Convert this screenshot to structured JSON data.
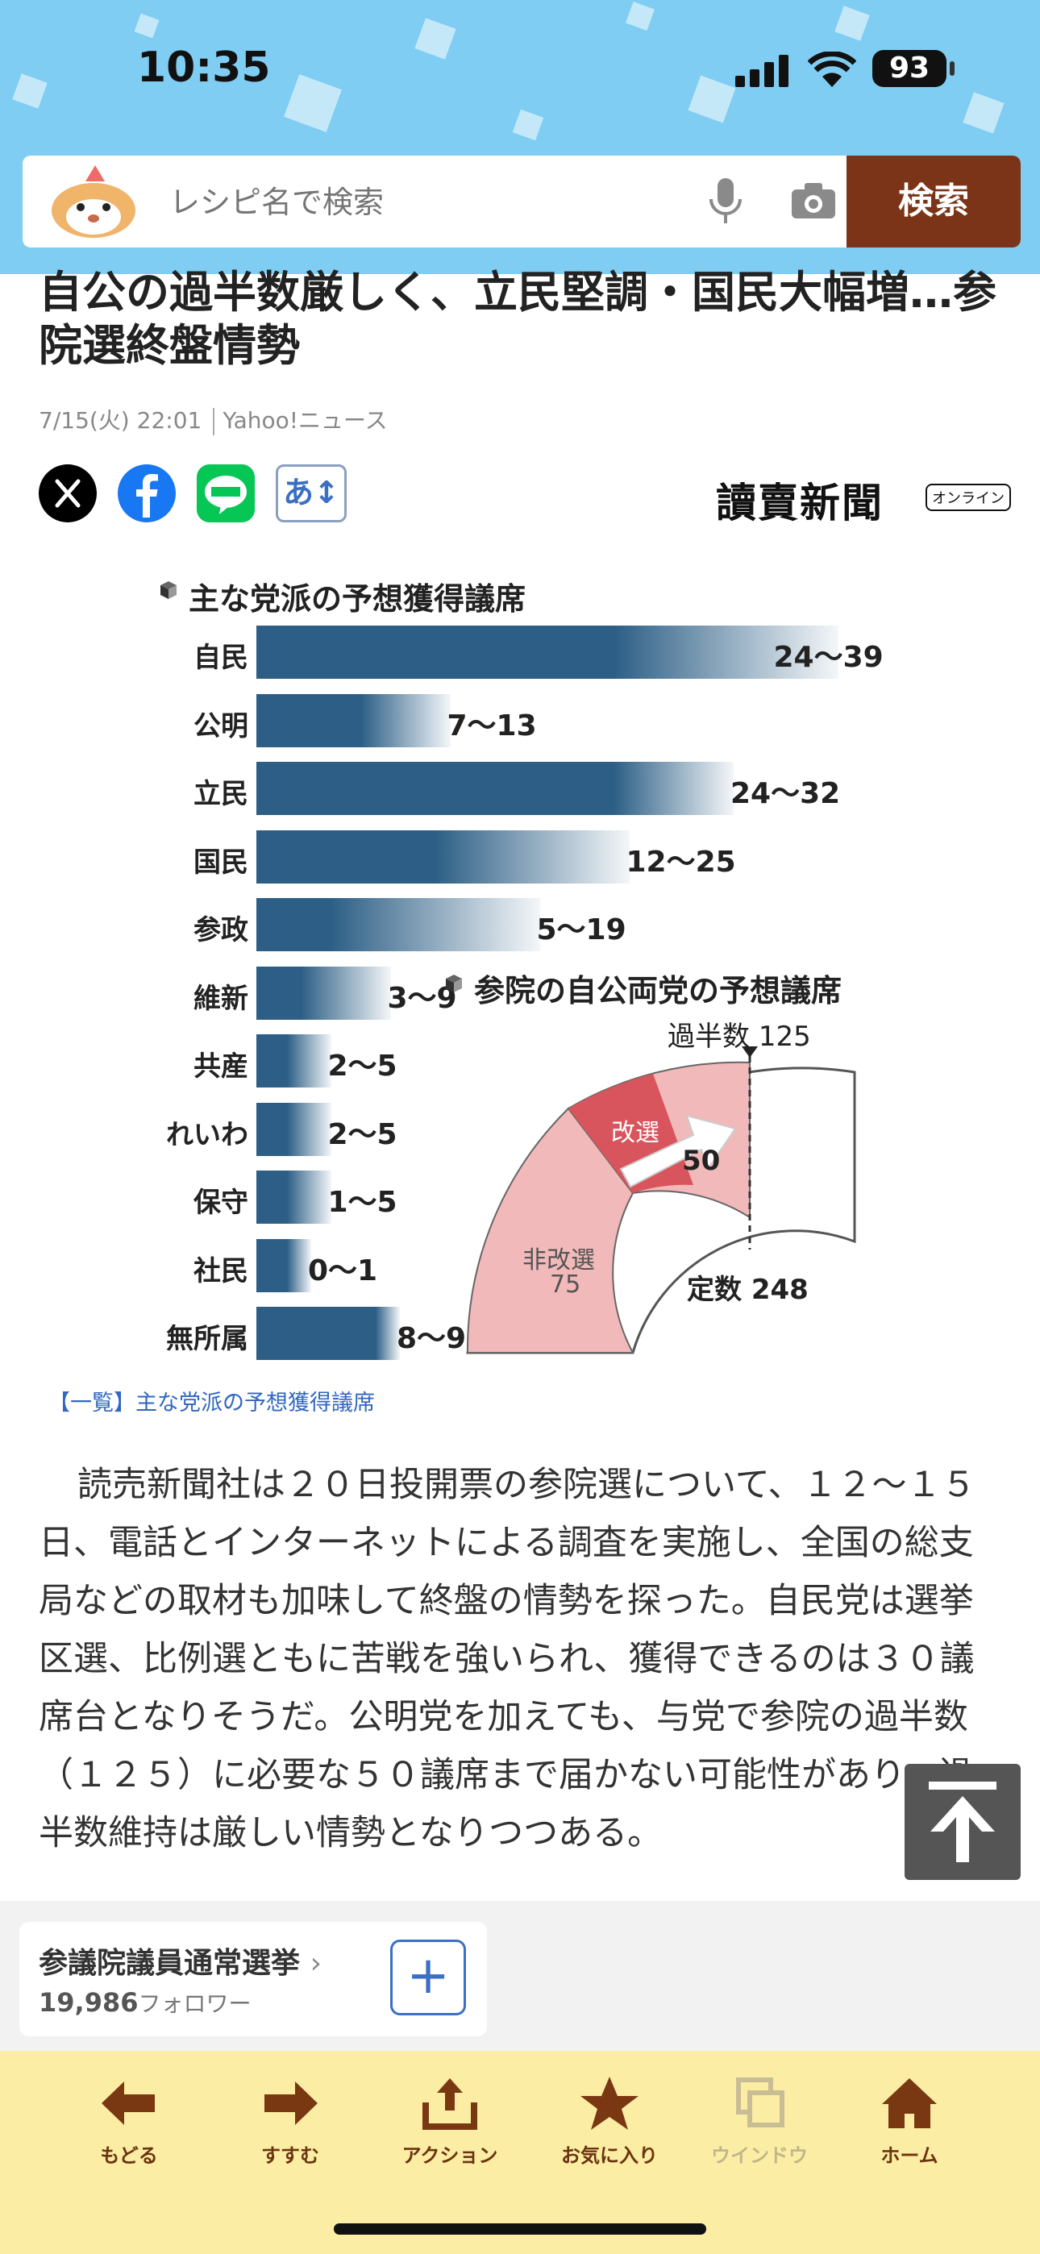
{
  "status_bar": {
    "time": "10:35",
    "battery": "93"
  },
  "search": {
    "placeholder": "レシピ名で検索",
    "button_label": "検索"
  },
  "article": {
    "headline": "自公の過半数厳しく、立民堅調・国民大幅増…参院選終盤情勢",
    "date": "7/15(火) 22:01",
    "source": "Yahoo!ニュース",
    "font_button": "あ↕",
    "publisher": "讀賣新聞",
    "publisher_badge": "オンライン",
    "caption": "【一覧】主な党派の予想獲得議席",
    "body": "読売新聞社は２０日投開票の参院選について、１２～１５日、電話とインターネットによる調査を実施し、全国の総支局などの取材も加味して終盤の情勢を探った。自民党は選挙区選、比例選ともに苦戦を強いられ、獲得できるのは３０議席台となりそうだ。公明党を加えても、与党で参院の過半数（１２５）に必要な５０議席まで届かない可能性があり、過半数維持は厳しい情勢となりつつある。"
  },
  "chart_data": [
    {
      "type": "bar",
      "title": "主な党派の予想獲得議席",
      "categories": [
        "自民",
        "公明",
        "立民",
        "国民",
        "参政",
        "維新",
        "共産",
        "れいわ",
        "保守",
        "社民",
        "無所属"
      ],
      "value_labels": [
        "24～39",
        "7～13",
        "24～32",
        "12～25",
        "5～19",
        "3～9",
        "2～5",
        "2～5",
        "1～5",
        "0～1",
        "8～9"
      ],
      "ranges": [
        [
          24,
          39
        ],
        [
          7,
          13
        ],
        [
          24,
          32
        ],
        [
          12,
          25
        ],
        [
          5,
          19
        ],
        [
          3,
          9
        ],
        [
          2,
          5
        ],
        [
          2,
          5
        ],
        [
          1,
          5
        ],
        [
          0,
          1
        ],
        [
          8,
          9
        ]
      ]
    },
    {
      "type": "pie",
      "title": "参院の自公両党の予想議席",
      "majority_label": "過半数",
      "majority": 125,
      "total_label": "定数",
      "total": 248,
      "non_up_label": "非改選",
      "non_up": 75,
      "up_label": "改選",
      "up_needed": 50,
      "ruling_label": "自公"
    }
  ],
  "follow": {
    "title": "参議院議員通常選挙",
    "count": "19,986",
    "count_unit": "フォロワー",
    "button": "+"
  },
  "toolbar": {
    "items": [
      {
        "label": "もどる",
        "icon": "arrow-left-icon"
      },
      {
        "label": "すすむ",
        "icon": "arrow-right-icon"
      },
      {
        "label": "アクション",
        "icon": "share-icon"
      },
      {
        "label": "お気に入り",
        "icon": "star-icon"
      },
      {
        "label": "ウインドウ",
        "icon": "windows-icon"
      },
      {
        "label": "ホーム",
        "icon": "home-icon"
      }
    ],
    "accent": "#6b3410"
  },
  "colors": {
    "header": "#7fcdf2",
    "search_button": "#7b3418",
    "bar": "#2d5f86",
    "toolbar": "#fbeea4"
  }
}
